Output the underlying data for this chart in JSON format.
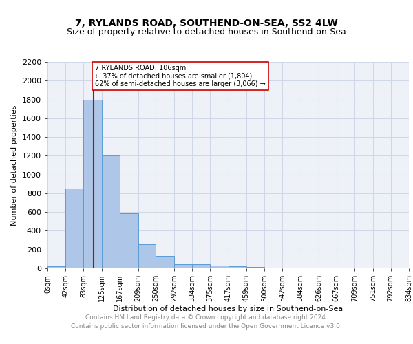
{
  "title": "7, RYLANDS ROAD, SOUTHEND-ON-SEA, SS2 4LW",
  "subtitle": "Size of property relative to detached houses in Southend-on-Sea",
  "xlabel": "Distribution of detached houses by size in Southend-on-Sea",
  "ylabel": "Number of detached properties",
  "bar_edges": [
    0,
    42,
    83,
    125,
    167,
    209,
    250,
    292,
    334,
    375,
    417,
    459,
    500,
    542,
    584,
    626,
    667,
    709,
    751,
    792,
    834
  ],
  "bar_heights": [
    25,
    850,
    1800,
    1200,
    585,
    255,
    130,
    45,
    45,
    28,
    20,
    15,
    0,
    0,
    0,
    0,
    0,
    0,
    0,
    0
  ],
  "bar_color": "#aec6e8",
  "bar_edge_color": "#5b9bd5",
  "grid_color": "#d0d8e8",
  "bg_color": "#eef2f8",
  "vline_x": 106,
  "vline_color": "#cc0000",
  "annotation_text": "7 RYLANDS ROAD: 106sqm\n← 37% of detached houses are smaller (1,804)\n62% of semi-detached houses are larger (3,066) →",
  "annotation_box_color": "#ffffff",
  "annotation_border_color": "#cc0000",
  "ylim": [
    0,
    2200
  ],
  "yticks": [
    0,
    200,
    400,
    600,
    800,
    1000,
    1200,
    1400,
    1600,
    1800,
    2000,
    2200
  ],
  "tick_labels": [
    "0sqm",
    "42sqm",
    "83sqm",
    "125sqm",
    "167sqm",
    "209sqm",
    "250sqm",
    "292sqm",
    "334sqm",
    "375sqm",
    "417sqm",
    "459sqm",
    "500sqm",
    "542sqm",
    "584sqm",
    "626sqm",
    "667sqm",
    "709sqm",
    "751sqm",
    "792sqm",
    "834sqm"
  ],
  "footer_line1": "Contains HM Land Registry data © Crown copyright and database right 2024.",
  "footer_line2": "Contains public sector information licensed under the Open Government Licence v3.0.",
  "title_fontsize": 10,
  "subtitle_fontsize": 9,
  "footer_fontsize": 6.5,
  "footer_color": "#888888",
  "axis_label_fontsize": 8,
  "tick_fontsize": 7
}
